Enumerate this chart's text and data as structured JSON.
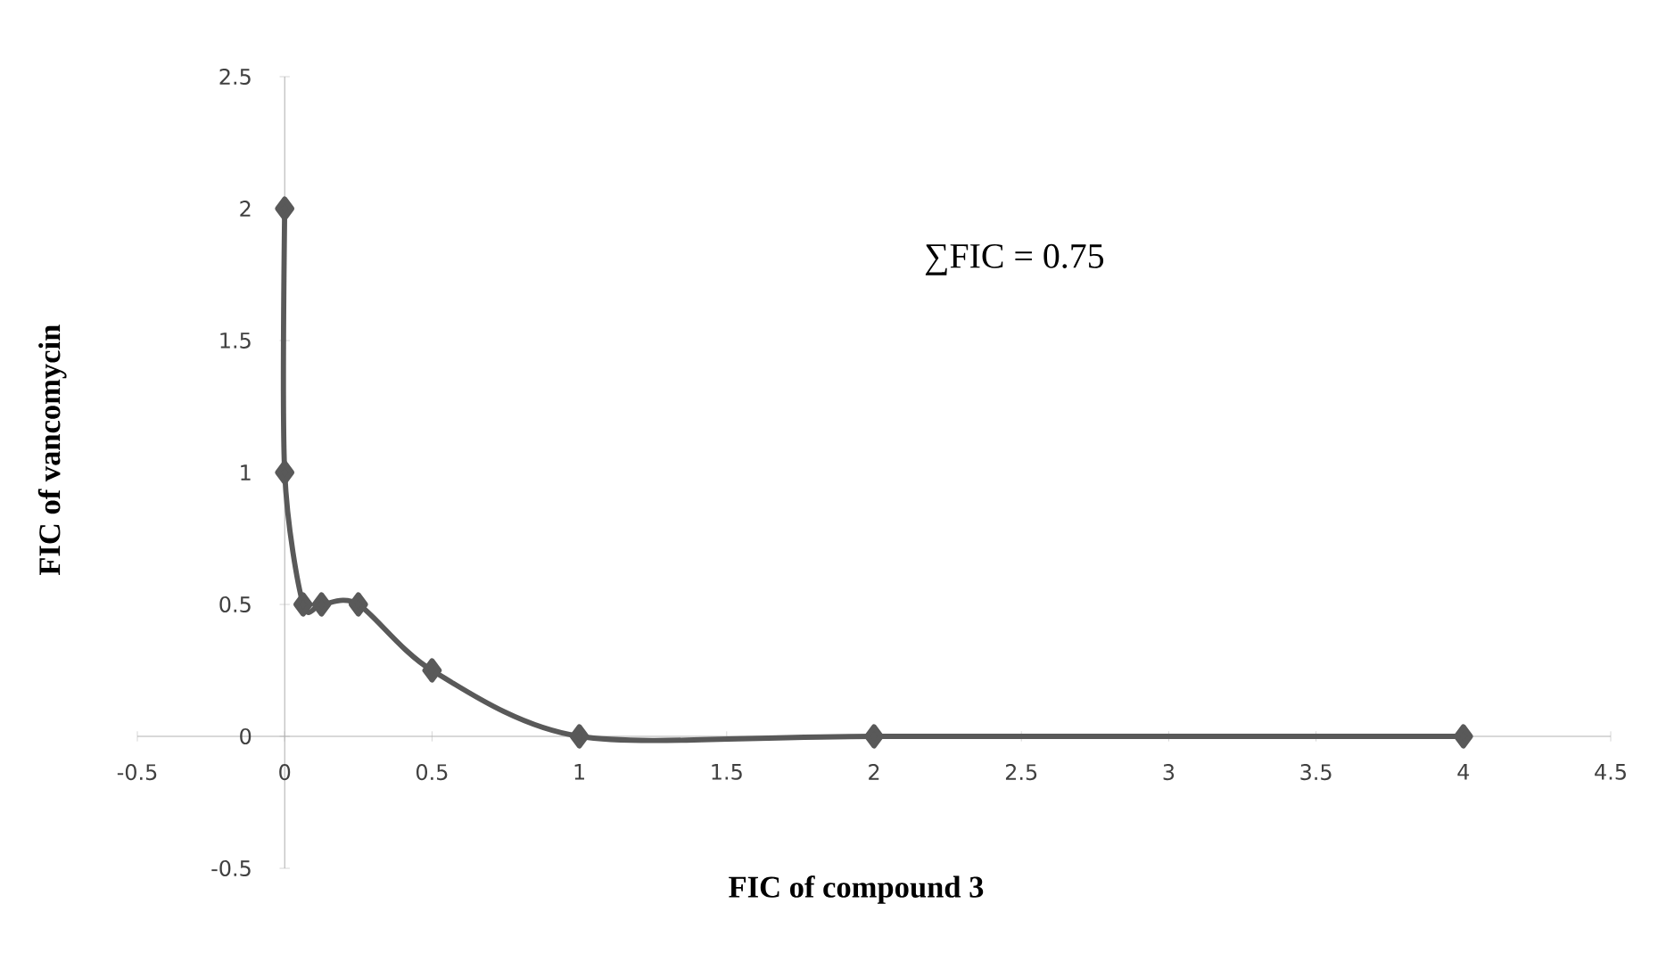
{
  "chart_data": {
    "type": "line",
    "xlabel": "FIC of compound 3",
    "ylabel": "FIC of vancomycin",
    "annotations": [
      "∑FIC = 0.75"
    ],
    "xlim": [
      -0.5,
      4.5
    ],
    "ylim": [
      -0.5,
      2.5
    ],
    "xticks": [
      -0.5,
      0,
      0.5,
      1,
      1.5,
      2,
      2.5,
      3,
      3.5,
      4,
      4.5
    ],
    "yticks": [
      -0.5,
      0,
      0.5,
      1,
      1.5,
      2,
      2.5
    ],
    "grid": false,
    "marker": "diamond",
    "line_style": "solid",
    "series": [
      {
        "color": "#595959",
        "x": [
          0,
          0,
          0.0625,
          0.125,
          0.25,
          0.5,
          1,
          2,
          4
        ],
        "values": [
          2,
          1,
          0.5,
          0.5,
          0.5,
          0.25,
          0,
          0,
          0
        ]
      }
    ]
  }
}
